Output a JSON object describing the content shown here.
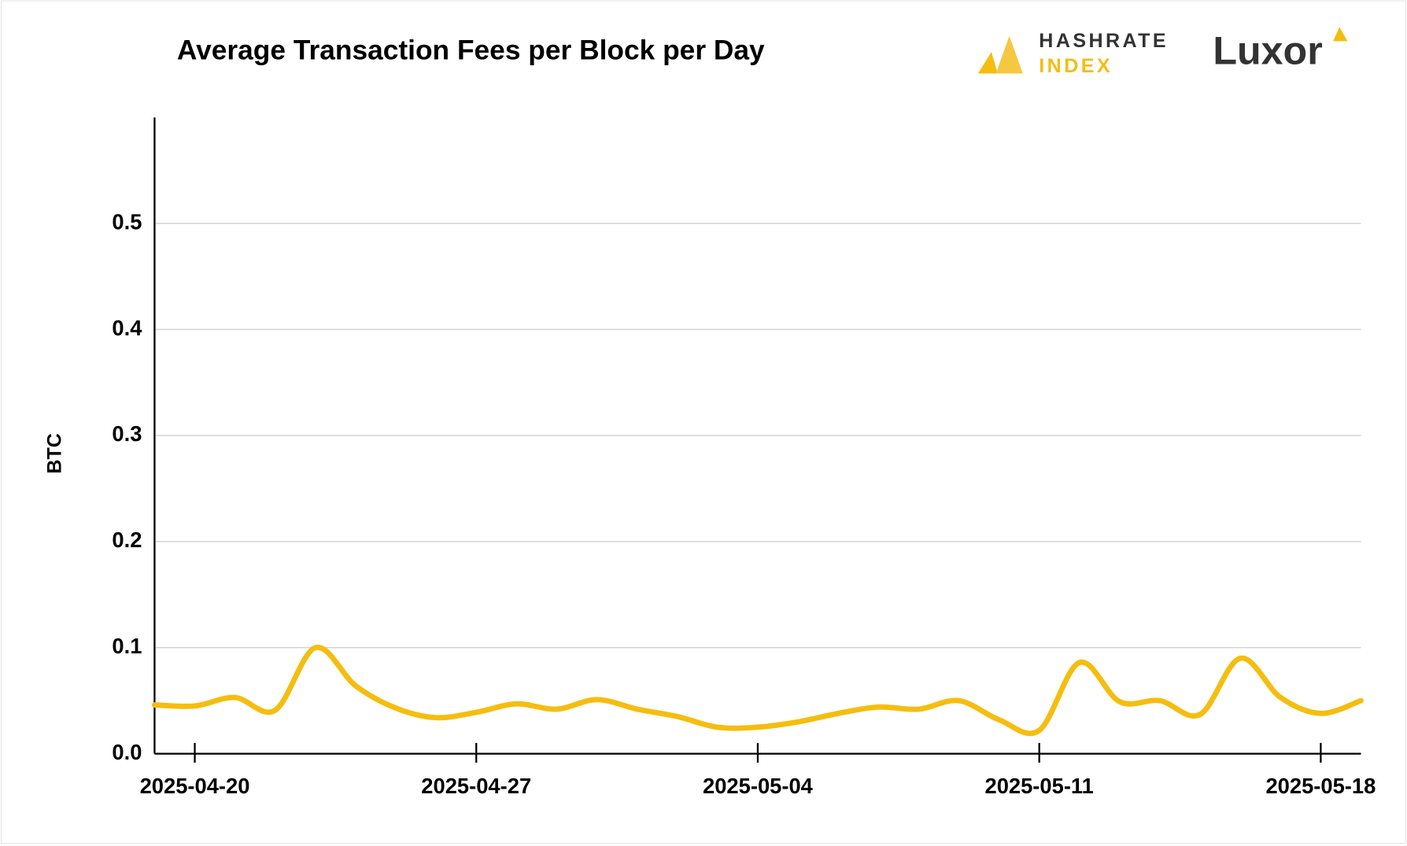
{
  "chart_data": {
    "type": "line",
    "title": "Average Transaction Fees per Block per Day",
    "brand": {
      "hashrate_top": "HASHRATE",
      "hashrate_bottom": "INDEX",
      "luxor": "Luxor"
    },
    "y_label": "BTC",
    "x": [
      "2025-04-19",
      "2025-04-20",
      "2025-04-21",
      "2025-04-22",
      "2025-04-23",
      "2025-04-24",
      "2025-04-25",
      "2025-04-26",
      "2025-04-27",
      "2025-04-28",
      "2025-04-29",
      "2025-04-30",
      "2025-05-01",
      "2025-05-02",
      "2025-05-03",
      "2025-05-04",
      "2025-05-05",
      "2025-05-06",
      "2025-05-07",
      "2025-05-08",
      "2025-05-09",
      "2025-05-10",
      "2025-05-11",
      "2025-05-12",
      "2025-05-13",
      "2025-05-14",
      "2025-05-15",
      "2025-05-16",
      "2025-05-17",
      "2025-05-18",
      "2025-05-19"
    ],
    "series": [
      {
        "name": "BTC",
        "color": "#f5bd0f",
        "values": [
          0.046,
          0.045,
          0.053,
          0.041,
          0.1,
          0.064,
          0.043,
          0.034,
          0.039,
          0.047,
          0.042,
          0.051,
          0.042,
          0.035,
          0.025,
          0.025,
          0.03,
          0.038,
          0.044,
          0.042,
          0.05,
          0.032,
          0.022,
          0.086,
          0.049,
          0.05,
          0.037,
          0.09,
          0.053,
          0.038,
          0.05
        ]
      }
    ],
    "xlim": [
      "2025-04-19",
      "2025-05-19"
    ],
    "xticks": [
      "2025-04-20",
      "2025-04-27",
      "2025-05-04",
      "2025-05-11",
      "2025-05-18"
    ],
    "ylim": [
      0,
      0.6
    ],
    "yticks": [
      {
        "value": 0,
        "label": "0.0"
      },
      0.1,
      0.2,
      0.3,
      0.4,
      0.5
    ],
    "grid": true
  }
}
